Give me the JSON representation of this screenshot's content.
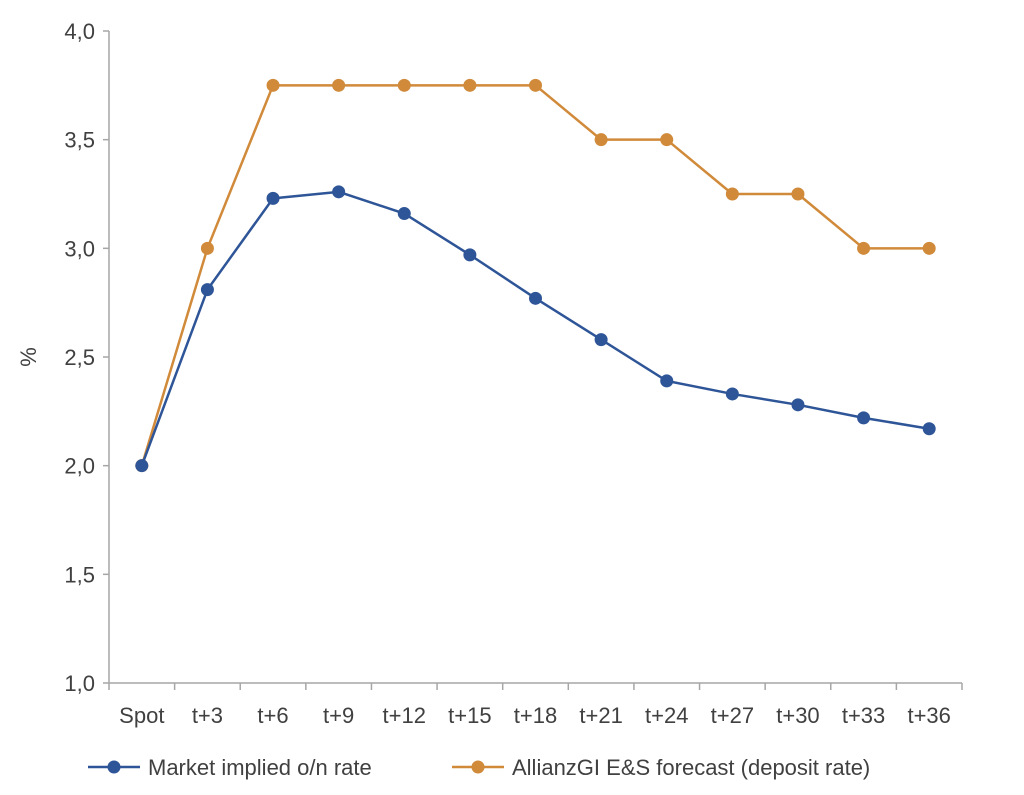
{
  "chart_data": {
    "type": "line",
    "title": "",
    "xlabel": "",
    "ylabel": "%",
    "ylim": [
      1.0,
      4.0
    ],
    "yticks": [
      "1,0",
      "1,5",
      "2,0",
      "2,5",
      "3,0",
      "3,5",
      "4,0"
    ],
    "ytick_values": [
      1.0,
      1.5,
      2.0,
      2.5,
      3.0,
      3.5,
      4.0
    ],
    "categories": [
      "Spot",
      "t+3",
      "t+6",
      "t+9",
      "t+12",
      "t+15",
      "t+18",
      "t+21",
      "t+24",
      "t+27",
      "t+30",
      "t+33",
      "t+36"
    ],
    "grid": false,
    "legend_position": "bottom",
    "series": [
      {
        "name": "Market implied o/n rate",
        "color": "#2e5597",
        "values": [
          2.0,
          2.81,
          3.23,
          3.26,
          3.16,
          2.97,
          2.77,
          2.58,
          2.39,
          2.33,
          2.28,
          2.22,
          2.17
        ]
      },
      {
        "name": "AllianzGI E&S forecast (deposit rate)",
        "color": "#d08a3a",
        "values": [
          2.0,
          3.0,
          3.75,
          3.75,
          3.75,
          3.75,
          3.75,
          3.5,
          3.5,
          3.25,
          3.25,
          3.0,
          3.0
        ]
      }
    ]
  }
}
